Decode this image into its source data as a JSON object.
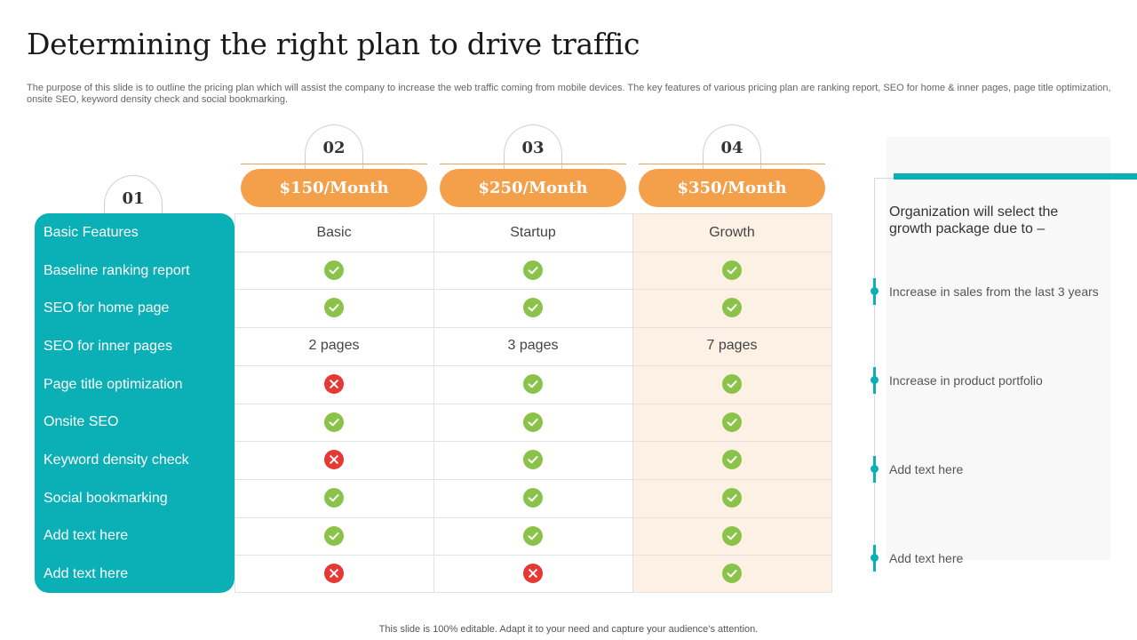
{
  "title": "Determining the right plan to drive traffic",
  "subtitle": "The purpose of this slide is to outline the pricing plan which will assist the company to increase the web traffic coming from mobile devices. The key features of various pricing plan are ranking report, SEO for home & inner pages, page title optimization, onsite SEO, keyword density check and social bookmarking.",
  "footer": "This slide is 100% editable. Adapt it to your need and capture your audience’s attention.",
  "colors": {
    "teal": "#0bb0b6",
    "orange": "#f4a04a",
    "growth_bg": "#fdf1e6",
    "check": "#8bc34a",
    "cross": "#e53935"
  },
  "features_number": "01",
  "features": [
    "Basic Features",
    "Baseline ranking report",
    "SEO for home page",
    "SEO for inner pages",
    "Page title optimization",
    "Onsite SEO",
    "Keyword density check",
    "Social bookmarking",
    "Add text here",
    "Add text here"
  ],
  "plans": [
    {
      "number": "02",
      "price": "$150/Month",
      "name": "Basic",
      "values": [
        "check",
        "check",
        "2 pages",
        "cross",
        "check",
        "cross",
        "check",
        "check",
        "cross"
      ]
    },
    {
      "number": "03",
      "price": "$250/Month",
      "name": "Startup",
      "values": [
        "check",
        "check",
        "3 pages",
        "check",
        "check",
        "check",
        "check",
        "check",
        "cross"
      ]
    },
    {
      "number": "04",
      "price": "$350/Month",
      "name": "Growth",
      "values": [
        "check",
        "check",
        "7 pages",
        "check",
        "check",
        "check",
        "check",
        "check",
        "check"
      ]
    }
  ],
  "side": {
    "heading": "Organization will select the growth package due to –",
    "items": [
      "Increase in sales from the last 3 years",
      "Increase in product portfolio",
      "Add text here",
      "Add text here"
    ]
  }
}
